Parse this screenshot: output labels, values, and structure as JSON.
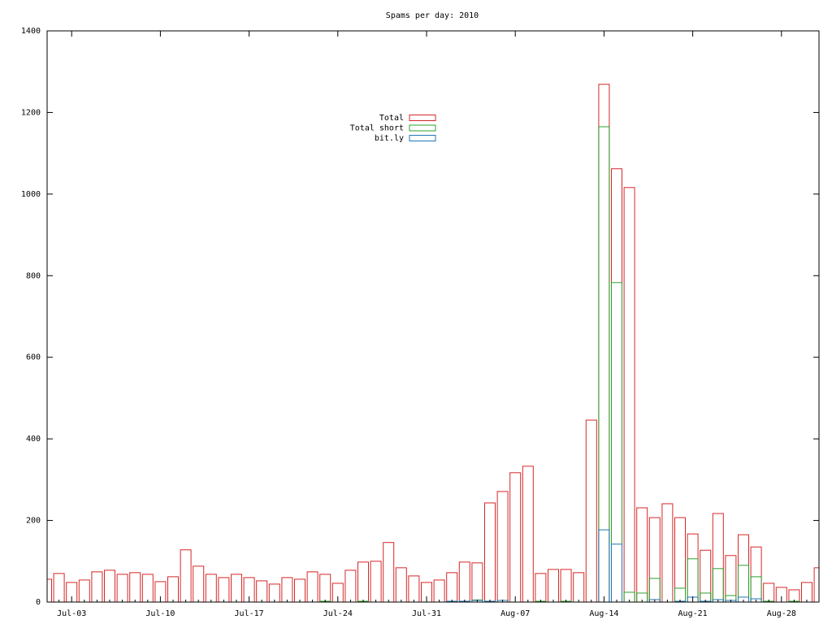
{
  "chart_data": {
    "type": "bar",
    "title": "Spams per day: 2010",
    "categories": [
      null,
      null,
      "Jul-03",
      null,
      null,
      null,
      null,
      null,
      null,
      "Jul-10",
      null,
      null,
      null,
      null,
      null,
      null,
      "Jul-17",
      null,
      null,
      null,
      null,
      null,
      null,
      "Jul-24",
      null,
      null,
      null,
      null,
      null,
      null,
      "Jul-31",
      null,
      null,
      null,
      null,
      null,
      null,
      "Aug-07",
      null,
      null,
      null,
      null,
      null,
      null,
      "Aug-14",
      null,
      null,
      null,
      null,
      null,
      null,
      "Aug-21",
      null,
      null,
      null,
      null,
      null,
      null,
      "Aug-28",
      null,
      null,
      null
    ],
    "series": [
      {
        "name": "Total",
        "color": "#d62728",
        "values": [
          56,
          70,
          48,
          54,
          74,
          78,
          68,
          72,
          68,
          50,
          62,
          128,
          88,
          68,
          60,
          68,
          60,
          52,
          44,
          60,
          56,
          74,
          68,
          46,
          78,
          98,
          100,
          146,
          84,
          64,
          48,
          54,
          72,
          98,
          96,
          243,
          271,
          317,
          333,
          70,
          80,
          80,
          72,
          446,
          1269,
          1062,
          1016,
          231,
          207,
          241,
          207,
          167,
          127,
          217,
          114,
          165,
          135,
          46,
          36,
          30,
          48,
          84
        ]
      },
      {
        "name": "Total short",
        "color": "#2ca02c",
        "values": [
          0,
          0,
          0,
          0,
          0,
          0,
          0,
          0,
          0,
          0,
          0,
          0,
          0,
          0,
          0,
          0,
          0,
          0,
          0,
          0,
          0,
          0,
          2,
          0,
          0,
          2,
          0,
          0,
          0,
          0,
          0,
          0,
          2,
          2,
          5,
          2,
          4,
          0,
          0,
          2,
          0,
          2,
          0,
          0,
          1165,
          783,
          24,
          22,
          58,
          0,
          34,
          106,
          22,
          82,
          16,
          90,
          62,
          2,
          0,
          2,
          0,
          0
        ]
      },
      {
        "name": "bit.ly",
        "color": "#1f77b4",
        "values": [
          0,
          0,
          0,
          0,
          0,
          0,
          0,
          0,
          0,
          0,
          0,
          0,
          0,
          0,
          0,
          0,
          0,
          0,
          0,
          0,
          0,
          0,
          0,
          0,
          0,
          0,
          0,
          0,
          0,
          0,
          0,
          0,
          2,
          2,
          4,
          2,
          4,
          0,
          0,
          0,
          0,
          0,
          0,
          0,
          177,
          142,
          0,
          0,
          6,
          0,
          2,
          12,
          2,
          6,
          4,
          12,
          8,
          0,
          0,
          0,
          0,
          0
        ]
      }
    ],
    "ylim": [
      0,
      1400
    ],
    "yticks": [
      0,
      200,
      400,
      600,
      800,
      1000,
      1200,
      1400
    ]
  }
}
